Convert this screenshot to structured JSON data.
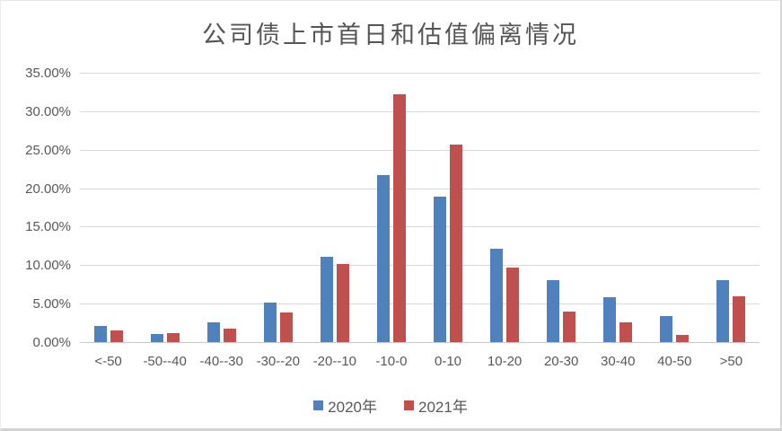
{
  "chart_data": {
    "type": "bar",
    "title": "公司债上市首日和估值偏离情况",
    "xlabel": "",
    "ylabel": "",
    "categories": [
      "<-50",
      "-50--40",
      "-40--30",
      "-30--20",
      "-20--10",
      "-10-0",
      "0-10",
      "10-20",
      "20-30",
      "30-40",
      "40-50",
      ">50"
    ],
    "series": [
      {
        "name": "2020年",
        "color": "#4F81BD",
        "values": [
          2.1,
          1.0,
          2.6,
          5.1,
          11.1,
          21.7,
          18.9,
          12.1,
          8.0,
          5.8,
          3.4,
          8.0
        ]
      },
      {
        "name": "2021年",
        "color": "#C0504D",
        "values": [
          1.5,
          1.2,
          1.7,
          3.8,
          10.2,
          32.2,
          25.7,
          9.7,
          4.0,
          2.6,
          0.9,
          5.9
        ]
      }
    ],
    "value_unit": "%",
    "ylim": [
      0,
      35
    ],
    "yticks": [
      {
        "value": 0,
        "label": "0.00%"
      },
      {
        "value": 5,
        "label": "5.00%"
      },
      {
        "value": 10,
        "label": "10.00%"
      },
      {
        "value": 15,
        "label": "15.00%"
      },
      {
        "value": 20,
        "label": "20.00%"
      },
      {
        "value": 25,
        "label": "25.00%"
      },
      {
        "value": 30,
        "label": "30.00%"
      },
      {
        "value": 35,
        "label": "35.00%"
      }
    ],
    "grid": true,
    "legend_position": "bottom"
  },
  "colors": {
    "text": "#595959",
    "gridline": "#D9D9D9",
    "axis_line": "#C9C9C9",
    "background": "#FFFFFF",
    "series_2020": "#4F81BD",
    "series_2021": "#C0504D"
  }
}
